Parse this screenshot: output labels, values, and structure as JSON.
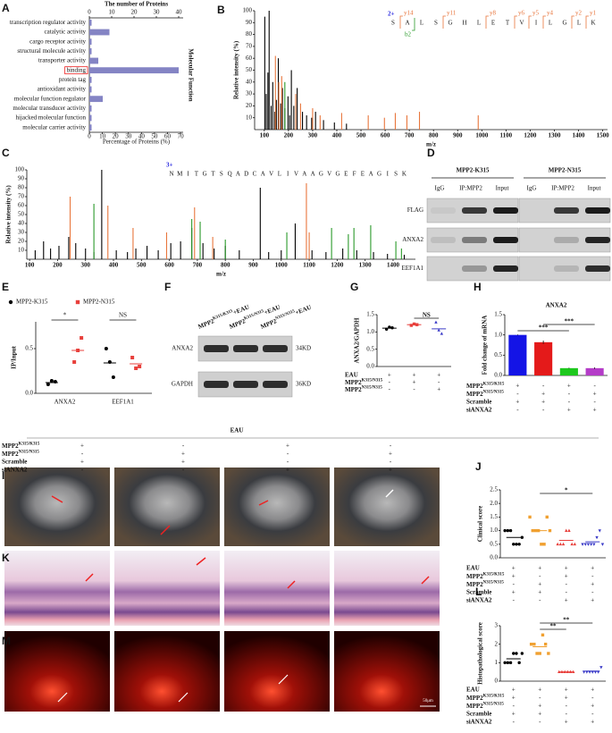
{
  "panel_labels": [
    "A",
    "B",
    "C",
    "D",
    "E",
    "F",
    "G",
    "H",
    "I",
    "J",
    "K",
    "L",
    "M"
  ],
  "chart_data": [
    {
      "type": "hbar",
      "title": "The number of Proteins",
      "x_label": "Percentage of Proteins (%)",
      "side_label": "Molecular Function",
      "categories": [
        "transcription regulator activity",
        "catalytic activity",
        "cargo receptor activity",
        "structural molecule activity",
        "transporter activity",
        "binding",
        "protein tag",
        "antioxidant activity",
        "molecular function regulator",
        "molecular transducer activity",
        "hijacked molecular function",
        "molecular carrier activity"
      ],
      "values": [
        1,
        9,
        1,
        1,
        4,
        40,
        1,
        1,
        6,
        1,
        1,
        1
      ],
      "color": "#8484c4",
      "highlight": 5,
      "xlim": [
        0,
        42
      ],
      "xticks": [
        0,
        10,
        20,
        30,
        40
      ],
      "x2lim": [
        0,
        72
      ],
      "x2ticks": [
        0,
        10,
        20,
        30,
        40,
        50,
        60,
        70
      ]
    },
    {
      "type": "spectrum",
      "y_label": "Relative intensity (%)",
      "x_label": "m/z",
      "xlim": [
        60,
        1520
      ],
      "xticks": [
        100,
        200,
        300,
        400,
        500,
        600,
        700,
        800,
        900,
        1000,
        1100,
        1200,
        1300,
        1400,
        1500
      ],
      "ylim": [
        0,
        100
      ],
      "yticks": [
        10,
        20,
        30,
        40,
        50,
        60,
        70,
        80,
        90,
        100
      ],
      "series": [
        {
          "color": "#000000",
          "x": [
            102,
            108,
            115,
            120,
            128,
            135,
            143,
            150,
            158,
            168,
            175,
            185,
            198,
            205,
            212,
            222,
            236,
            258,
            275,
            296,
            312,
            345,
            390,
            440
          ],
          "values": [
            95,
            30,
            48,
            100,
            20,
            40,
            15,
            25,
            60,
            22,
            35,
            18,
            28,
            12,
            50,
            20,
            35,
            15,
            12,
            10,
            15,
            8,
            6,
            5
          ]
        },
        {
          "color": "#e8763c",
          "x": [
            146,
            160,
            172,
            230,
            250,
            300,
            331,
            420,
            530,
            597,
            642,
            690,
            742,
            985
          ],
          "values": [
            62,
            40,
            45,
            30,
            22,
            18,
            12,
            14,
            12,
            10,
            14,
            12,
            15,
            12
          ]
        },
        {
          "color": "#2a9a2a",
          "x": [
            185
          ],
          "values": [
            40
          ]
        }
      ],
      "charge": "2+",
      "peptide": [
        "S",
        "A",
        "L",
        "S",
        "G",
        "H",
        "L",
        "E",
        "T",
        "V",
        "I",
        "L",
        "G",
        "L",
        "K"
      ],
      "ions": [
        {
          "label": "y14",
          "position": 1
        },
        {
          "label": "y11",
          "position": 4
        },
        {
          "label": "y8",
          "position": 7
        },
        {
          "label": "y6",
          "position": 9
        },
        {
          "label": "y5",
          "position": 10
        },
        {
          "label": "y4",
          "position": 11
        },
        {
          "label": "y2",
          "position": 13
        },
        {
          "label": "y1",
          "position": 14
        }
      ],
      "b_ions": [
        {
          "label": "b2",
          "position": 1
        }
      ]
    },
    {
      "type": "spectrum",
      "y_label": "Relative intensity (%)",
      "x_label": "m/z",
      "xlim": [
        90,
        1480
      ],
      "xticks": [
        100,
        200,
        300,
        400,
        500,
        600,
        700,
        800,
        900,
        1000,
        1100,
        1200,
        1300,
        1400
      ],
      "ylim": [
        0,
        100
      ],
      "yticks": [
        10,
        20,
        30,
        40,
        50,
        60,
        70,
        80,
        90,
        100
      ],
      "series": [
        {
          "color": "#000000",
          "x": [
            120,
            150,
            175,
            205,
            240,
            265,
            300,
            330,
            358,
            410,
            450,
            480,
            520,
            560,
            605,
            640,
            680,
            720,
            760,
            800,
            850,
            925,
            955,
            1000,
            1050,
            1110,
            1160,
            1220,
            1270,
            1330,
            1380,
            1440
          ],
          "values": [
            10,
            20,
            12,
            15,
            25,
            18,
            12,
            8,
            100,
            10,
            8,
            12,
            15,
            10,
            18,
            20,
            35,
            18,
            12,
            15,
            10,
            80,
            8,
            10,
            40,
            10,
            8,
            12,
            10,
            8,
            6,
            5
          ]
        },
        {
          "color": "#e8763c",
          "x": [
            245,
            380,
            470,
            590,
            690,
            755,
            1090,
            1100
          ],
          "values": [
            70,
            60,
            35,
            30,
            58,
            25,
            85,
            30
          ]
        },
        {
          "color": "#2a9a2a",
          "x": [
            330,
            680,
            710,
            800,
            1020,
            1180,
            1240,
            1260,
            1320,
            1410,
            1430
          ],
          "values": [
            62,
            45,
            42,
            22,
            30,
            35,
            28,
            35,
            38,
            20,
            12
          ]
        }
      ],
      "charge": "3+",
      "peptide": [
        "N",
        "M",
        "I",
        "T",
        "G",
        "T",
        "S",
        "Q",
        "A",
        "D",
        "C",
        "A",
        "V",
        "L",
        "I",
        "V",
        "A",
        "A",
        "G",
        "V",
        "G",
        "E",
        "F",
        "E",
        "A",
        "G",
        "I",
        "S",
        "K"
      ]
    },
    {
      "type": "dot",
      "y_label": "IP/Input",
      "categories": [
        "ANXA2",
        "EEF1A1"
      ],
      "ylim": [
        0,
        0.8
      ],
      "yticks": [
        {
          "value": 0,
          "label": "0.0"
        },
        {
          "value": 0.5,
          "label": "0.5"
        }
      ],
      "series": [
        {
          "name": "MPP2-K315",
          "color": "#000000",
          "marker": "circle",
          "values": [
            [
              0.1,
              0.14,
              0.13
            ],
            [
              0.5,
              0.35,
              0.18
            ]
          ],
          "means": [
            0.12,
            0.34
          ]
        },
        {
          "name": "MPP2-N315",
          "color": "#e8403c",
          "marker": "square",
          "values": [
            [
              0.35,
              0.48,
              0.62
            ],
            [
              0.4,
              0.28,
              0.3
            ]
          ],
          "means": [
            0.48,
            0.33
          ]
        }
      ],
      "annotations": [
        {
          "text": "*",
          "category": 0
        },
        {
          "text": "NS",
          "category": 1
        }
      ]
    },
    {
      "type": "strip",
      "y_label": "ANXA2/GAPDH",
      "ylim": [
        0,
        1.5
      ],
      "yticks": [
        {
          "value": 0,
          "label": "0.0"
        },
        {
          "value": 0.5,
          "label": "0.5"
        },
        {
          "value": 1,
          "label": "1.0"
        },
        {
          "value": 1.5,
          "label": "1.5"
        }
      ],
      "groups": [
        {
          "color": "#000000",
          "marker": "circle",
          "values": [
            1.08,
            1.14,
            1.12
          ],
          "mean": 1.11
        },
        {
          "color": "#e8403c",
          "marker": "square",
          "values": [
            1.19,
            1.23,
            1.21
          ],
          "mean": 1.21
        },
        {
          "color": "#3c3cc8",
          "marker": "triangle",
          "values": [
            1.28,
            1.05,
            0.95
          ],
          "mean": 1.09
        }
      ],
      "annotations": [
        {
          "text": "NS",
          "from": 1,
          "to": 2
        }
      ],
      "conditions": [
        {
          "label": "EAU",
          "signs": [
            "+",
            "+",
            "+"
          ]
        },
        {
          "label": {
            "base": "MPP2",
            "sup": "K315/N315"
          },
          "signs": [
            "-",
            "+",
            "-"
          ]
        },
        {
          "label": {
            "base": "MPP2",
            "sup": "N315/N315"
          },
          "signs": [
            "-",
            "-",
            "+"
          ]
        }
      ]
    },
    {
      "type": "bar",
      "title": "ANXA2",
      "y_label": "Fold change of mRNA",
      "ylim": [
        0,
        1.5
      ],
      "yticks": [
        {
          "value": 0,
          "label": "0.0"
        },
        {
          "value": 0.5,
          "label": "0.5"
        },
        {
          "value": 1,
          "label": "1.0"
        },
        {
          "value": 1.5,
          "label": "1.5"
        }
      ],
      "values": [
        1.0,
        0.82,
        0.18,
        0.18
      ],
      "errors": [
        0.01,
        0.04,
        0.01,
        0.02
      ],
      "colors": [
        "#1414e6",
        "#e41a1a",
        "#1ec81e",
        "#b43cc8"
      ],
      "annotations": [
        {
          "text": "***",
          "from": 0,
          "to": 2
        },
        {
          "text": "***",
          "from": 1,
          "to": 3
        }
      ],
      "conditions": [
        {
          "label": {
            "base": "MPP2",
            "sup": "K315/K315"
          },
          "signs": [
            "+",
            "-",
            "+",
            "-"
          ]
        },
        {
          "label": {
            "base": "MPP2",
            "sup": "N315/N315"
          },
          "signs": [
            "-",
            "+",
            "-",
            "+"
          ]
        },
        {
          "label": "Scramble",
          "signs": [
            "+",
            "+",
            "-",
            "-"
          ]
        },
        {
          "label": "siANXA2",
          "signs": [
            "-",
            "-",
            "+",
            "+"
          ]
        }
      ]
    },
    {
      "type": "strip",
      "y_label": "Clinical score",
      "ylim": [
        0,
        2.5
      ],
      "yticks": [
        {
          "value": 0,
          "label": "0.0"
        },
        {
          "value": 0.5,
          "label": "0.5"
        },
        {
          "value": 1,
          "label": "1.0"
        },
        {
          "value": 1.5,
          "label": "1.5"
        },
        {
          "value": 2,
          "label": "2.0"
        },
        {
          "value": 2.5,
          "label": "2.5"
        }
      ],
      "groups": [
        {
          "color": "#000000",
          "marker": "circle",
          "values": [
            1.0,
            1.0,
            1.0,
            0.5,
            0.5,
            0.5,
            0.75
          ],
          "mean": 0.75
        },
        {
          "color": "#f0a030",
          "marker": "square",
          "values": [
            1.5,
            1.0,
            1.0,
            1.0,
            0.5,
            0.5,
            1.5,
            1.0
          ],
          "mean": 1.0
        },
        {
          "color": "#e8403c",
          "marker": "triangle",
          "values": [
            0.5,
            0.5,
            0.5,
            1.0,
            1.0,
            0.5,
            0.5
          ],
          "mean": 0.64
        },
        {
          "color": "#3c3cc8",
          "marker": "triangle-down",
          "values": [
            0.5,
            0.5,
            0.5,
            0.5,
            0.5,
            0.75,
            1.0,
            0.5
          ],
          "mean": 0.59
        }
      ],
      "annotations": [
        {
          "text": "*",
          "from": 1,
          "to": 3
        }
      ],
      "conditions": [
        {
          "label": "EAU",
          "signs": [
            "+",
            "+",
            "+",
            "+"
          ]
        },
        {
          "label": {
            "base": "MPP2",
            "sup": "K315/K315"
          },
          "signs": [
            "+",
            "-",
            "+",
            "-"
          ]
        },
        {
          "label": {
            "base": "MPP2",
            "sup": "N315/N315"
          },
          "signs": [
            "-",
            "+",
            "-",
            "+"
          ]
        },
        {
          "label": "Scramble",
          "signs": [
            "+",
            "+",
            "-",
            "-"
          ]
        },
        {
          "label": "siANXA2",
          "signs": [
            "-",
            "-",
            "+",
            "+"
          ]
        }
      ]
    },
    {
      "type": "strip",
      "y_label": "Histopathological score",
      "ylim": [
        0,
        3
      ],
      "yticks": [
        0,
        1,
        2,
        3
      ],
      "groups": [
        {
          "color": "#000000",
          "marker": "circle",
          "values": [
            1.0,
            1.0,
            1.0,
            1.5,
            1.5,
            1.0,
            1.5
          ],
          "mean": 1.21
        },
        {
          "color": "#f0a030",
          "marker": "square",
          "values": [
            2.0,
            2.0,
            1.5,
            1.5,
            2.5,
            2.0,
            1.5
          ],
          "mean": 1.86
        },
        {
          "color": "#e8403c",
          "marker": "triangle",
          "values": [
            0.5,
            0.5,
            0.5,
            0.5,
            0.5,
            0.5
          ],
          "mean": 0.5
        },
        {
          "color": "#3c3cc8",
          "marker": "triangle-down",
          "values": [
            0.5,
            0.5,
            0.5,
            0.5,
            0.5,
            0.5,
            0.75
          ],
          "mean": 0.54
        }
      ],
      "annotations": [
        {
          "text": "**",
          "from": 1,
          "to": 2
        },
        {
          "text": "**",
          "from": 1,
          "to": 3
        }
      ],
      "conditions": [
        {
          "label": "EAU",
          "signs": [
            "+",
            "+",
            "+",
            "+"
          ]
        },
        {
          "label": {
            "base": "MPP2",
            "sup": "K315/K315"
          },
          "signs": [
            "+",
            "-",
            "+",
            "-"
          ]
        },
        {
          "label": {
            "base": "MPP2",
            "sup": "N315/N315"
          },
          "signs": [
            "-",
            "+",
            "-",
            "+"
          ]
        },
        {
          "label": "Scramble",
          "signs": [
            "+",
            "+",
            "-",
            "-"
          ]
        },
        {
          "label": "siANXA2",
          "signs": [
            "-",
            "-",
            "+",
            "+"
          ]
        }
      ]
    }
  ],
  "blot_d": {
    "headers": [
      "MPP2-K315",
      "MPP2-N315"
    ],
    "lanes": [
      "IgG",
      "IP:MPP2",
      "Input"
    ],
    "rows": [
      "FLAG",
      "ANXA2",
      "EEF1A1"
    ]
  },
  "blot_f": {
    "columns": [
      {
        "base": "MPP2",
        "sup": "K315/K315",
        "suffix": "+EAU"
      },
      {
        "base": "MPP2",
        "sup": "K315/N315",
        "suffix": "+EAU"
      },
      {
        "base": "MPP2",
        "sup": "N315/N315",
        "suffix": "+EAU"
      }
    ],
    "rows": [
      {
        "name": "ANXA2",
        "size": "34KD"
      },
      {
        "name": "GAPDH",
        "size": "36KD"
      }
    ]
  },
  "treatments": {
    "title": "EAU",
    "rows": [
      {
        "label": {
          "base": "MPP2",
          "sup": "K315/K315"
        },
        "signs": [
          "+",
          "-",
          "+",
          "-"
        ]
      },
      {
        "label": {
          "base": "MPP2",
          "sup": "N315/N315"
        },
        "signs": [
          "-",
          "+",
          "-",
          "+"
        ]
      },
      {
        "label": "Scramble",
        "signs": [
          "+",
          "+",
          "-",
          "-"
        ]
      },
      {
        "label": "siANXA2",
        "signs": [
          "-",
          "-",
          "+",
          "+"
        ]
      }
    ]
  },
  "scale_bar": "50μm"
}
